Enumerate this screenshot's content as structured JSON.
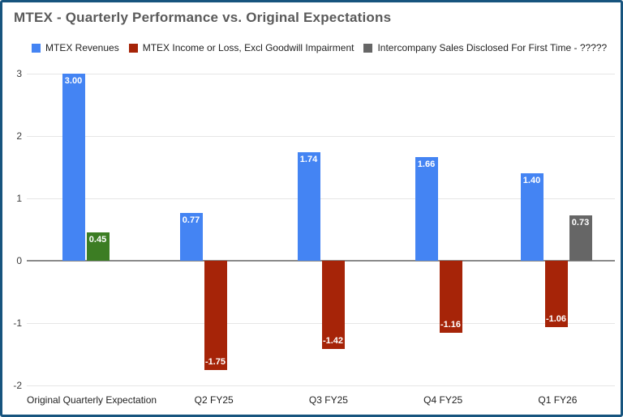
{
  "frame": {
    "border_color": "#17547E",
    "background": "#FFFFFF"
  },
  "chart_data": {
    "type": "bar",
    "title": "MTEX - Quarterly Performance vs. Original Expectations",
    "categories": [
      "Original Quarterly Expectation",
      "Q2 FY25",
      "Q3 FY25",
      "Q4 FY25",
      "Q1 FY26"
    ],
    "series": [
      {
        "name": "MTEX Revenues",
        "color": "#4484F3",
        "values": [
          3.0,
          0.77,
          1.74,
          1.66,
          1.4
        ],
        "labels": [
          "3.00",
          "0.77",
          "1.74",
          "1.66",
          "1.40"
        ]
      },
      {
        "name": "MTEX Income or Loss, Excl Goodwill Impairment",
        "color": "#A62408",
        "values": [
          0.45,
          -1.75,
          -1.42,
          -1.16,
          -1.06
        ],
        "labels": [
          "0.45",
          "-1.75",
          "-1.42",
          "-1.16",
          "-1.06"
        ],
        "point_colors": [
          "#3C7D23",
          null,
          null,
          null,
          null
        ]
      },
      {
        "name": "Intercompany Sales Disclosed For First Time - ?????",
        "color": "#666666",
        "values": [
          null,
          null,
          null,
          null,
          0.73
        ],
        "labels": [
          null,
          null,
          null,
          null,
          "0.73"
        ]
      }
    ],
    "ylim": [
      -2,
      3
    ],
    "yticks": [
      {
        "value": 3,
        "label": "3"
      },
      {
        "value": 2,
        "label": "2"
      },
      {
        "value": 1,
        "label": "1"
      },
      {
        "value": 0,
        "label": "0"
      },
      {
        "value": -1,
        "label": "-1"
      },
      {
        "value": -2,
        "label": "-2"
      }
    ],
    "grid": true,
    "legend_position": "top",
    "value_label_color": "#FFFFFF",
    "title_color": "#5A5A5A",
    "gridline_color": "#E6E6E6",
    "zero_line_color": "#8A8A8A",
    "axis_text_color": "#3C3C3C"
  }
}
